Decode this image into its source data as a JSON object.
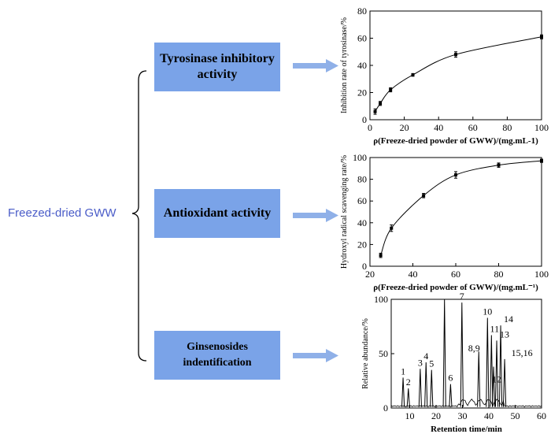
{
  "root": {
    "label": "Freezed-dried GWW"
  },
  "branches": {
    "tyrosinase": {
      "label": "Tyrosinase inhibitory activity"
    },
    "antioxidant": {
      "label": "Antioxidant activity"
    },
    "ginsenosides": {
      "label": "Ginsenosides indentification"
    }
  },
  "colors": {
    "box": "#7aa3e8",
    "arrow": "#8fb0e8",
    "root_text": "#4a5cc8"
  },
  "chart_data": [
    {
      "type": "scatter",
      "title": "",
      "xlabel": "ρ(Freeze-dried powder of GWW)/(mg.mL-1)",
      "ylabel": "Inhibition rate of tyrosinase/%",
      "xlim": [
        0,
        100
      ],
      "ylim": [
        0,
        80
      ],
      "xticks": [
        0,
        20,
        40,
        60,
        80,
        100
      ],
      "yticks": [
        0,
        20,
        40,
        60,
        80
      ],
      "fit_line": true,
      "points": [
        {
          "x": 3,
          "y": 6,
          "err": 2
        },
        {
          "x": 6,
          "y": 12,
          "err": 1.5
        },
        {
          "x": 12,
          "y": 22,
          "err": 1.5
        },
        {
          "x": 25,
          "y": 33,
          "err": 1
        },
        {
          "x": 50,
          "y": 48,
          "err": 2
        },
        {
          "x": 100,
          "y": 61,
          "err": 1.5
        }
      ]
    },
    {
      "type": "scatter",
      "title": "",
      "xlabel": "ρ(Freeze-dried powder of GWW)/(mg.mL⁻¹)",
      "ylabel": "Hydroxyl radical scavenging rate/%",
      "xlim": [
        20,
        100
      ],
      "ylim": [
        0,
        100
      ],
      "xticks": [
        20,
        40,
        60,
        80,
        100
      ],
      "yticks": [
        0,
        20,
        40,
        60,
        80,
        100
      ],
      "fit_line": true,
      "points": [
        {
          "x": 25,
          "y": 10,
          "err": 2
        },
        {
          "x": 30,
          "y": 35,
          "err": 3
        },
        {
          "x": 45,
          "y": 65,
          "err": 2
        },
        {
          "x": 60,
          "y": 84,
          "err": 3
        },
        {
          "x": 80,
          "y": 93,
          "err": 2
        },
        {
          "x": 100,
          "y": 97,
          "err": 1.5
        }
      ]
    },
    {
      "type": "line",
      "title": "",
      "xlabel": "Retention time/min",
      "ylabel": "Relative abundance/%",
      "xlim": [
        3,
        60
      ],
      "ylim": [
        0,
        100
      ],
      "xticks": [
        10,
        20,
        30,
        40,
        50,
        60
      ],
      "yticks": [
        0,
        50,
        100
      ],
      "peaks": [
        {
          "x": 7.5,
          "y": 28,
          "label": "1"
        },
        {
          "x": 9.5,
          "y": 18,
          "label": "2"
        },
        {
          "x": 14,
          "y": 36,
          "label": "3"
        },
        {
          "x": 16.2,
          "y": 42,
          "label": "4"
        },
        {
          "x": 18.3,
          "y": 35,
          "label": "5"
        },
        {
          "x": 23.2,
          "y": 100,
          "label": ""
        },
        {
          "x": 25.5,
          "y": 22,
          "label": "6"
        },
        {
          "x": 29.8,
          "y": 97,
          "label": "7"
        },
        {
          "x": 36.2,
          "y": 52,
          "label": "8,9"
        },
        {
          "x": 39.5,
          "y": 83,
          "label": "10"
        },
        {
          "x": 41,
          "y": 67,
          "label": "11"
        },
        {
          "x": 41.8,
          "y": 38,
          "label": "12"
        },
        {
          "x": 43,
          "y": 62,
          "label": "13"
        },
        {
          "x": 44.5,
          "y": 76,
          "label": "14"
        },
        {
          "x": 46,
          "y": 45,
          "label": "15,16"
        }
      ]
    }
  ]
}
